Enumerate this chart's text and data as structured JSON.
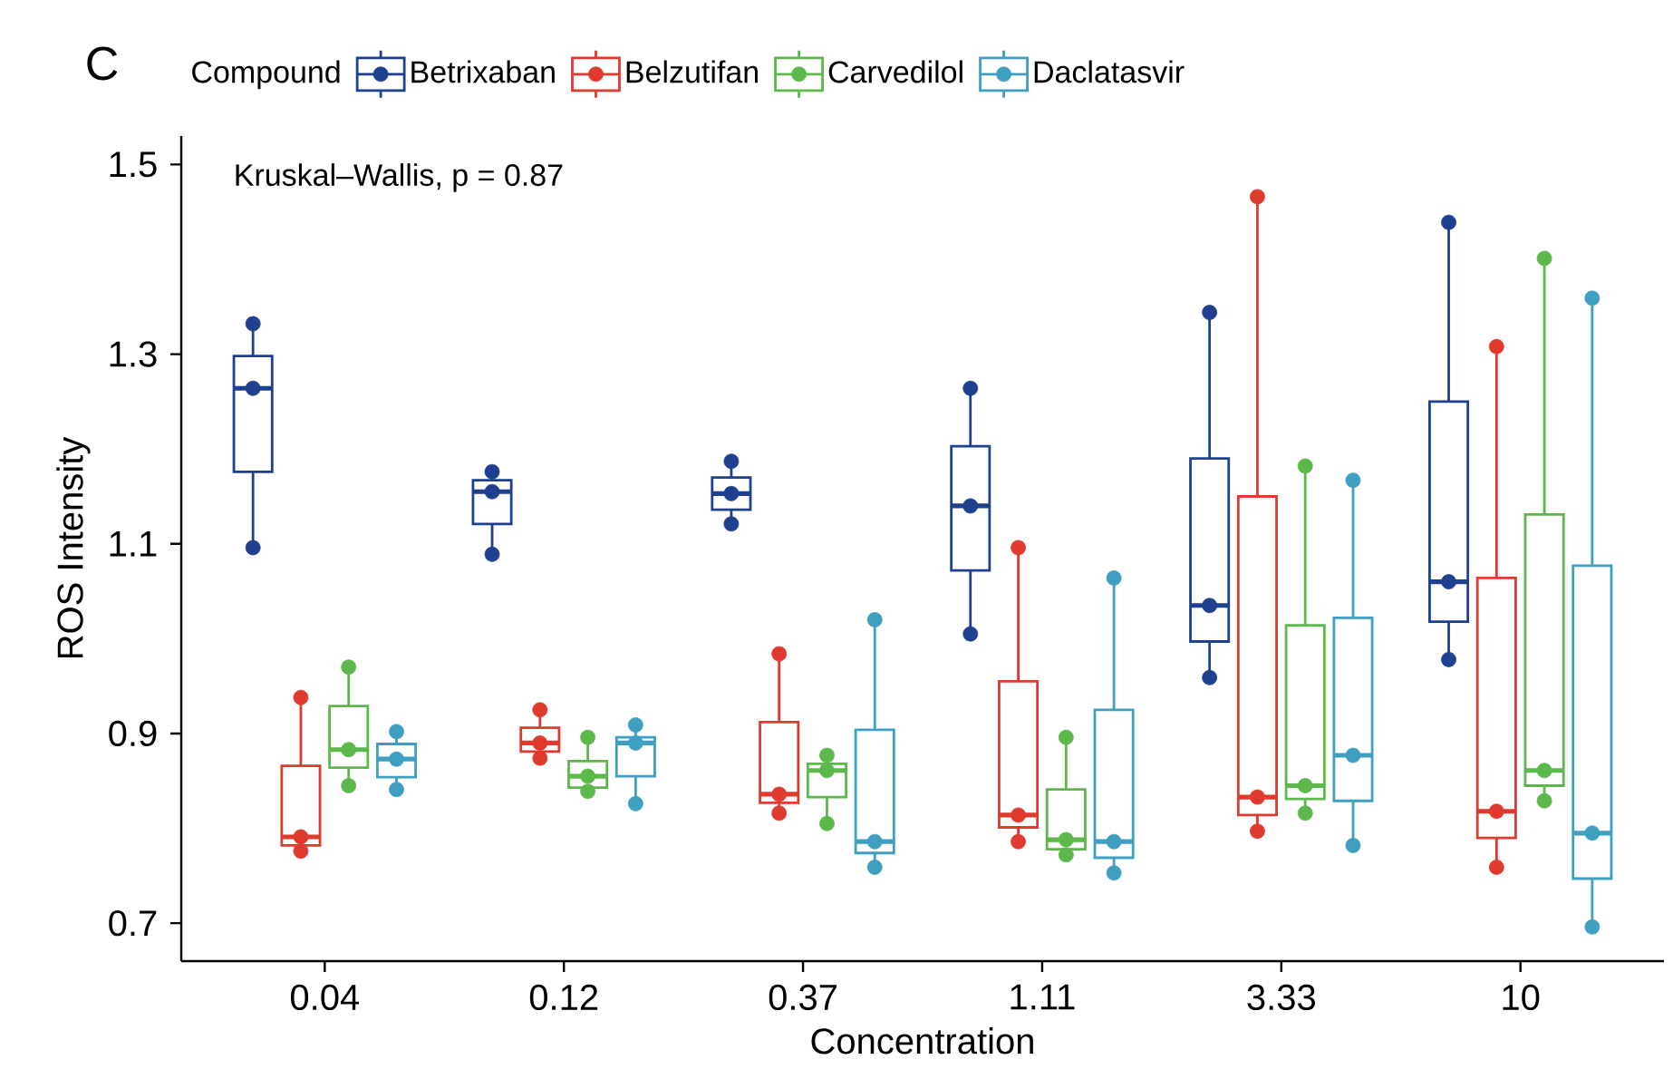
{
  "chart_data": {
    "type": "box",
    "xlabel": "Concentration",
    "ylabel": "ROS Intensity",
    "legend_title": "Compound",
    "legend": "top",
    "grid": false,
    "marker": "circle",
    "annotations": [
      "C",
      "Kruskal–Wallis, p = 0.87"
    ],
    "categories": [
      "0.04",
      "0.12",
      "0.37",
      "1.11",
      "3.33",
      "10"
    ],
    "ylim": [
      0.66,
      1.53
    ],
    "yticks": [
      0.7,
      0.9,
      1.1,
      1.3,
      1.5
    ],
    "series": [
      {
        "name": "Betrixaban",
        "color": "#1f3f8f",
        "boxes": [
          {
            "low": 1.096,
            "q1": 1.176,
            "median": 1.264,
            "q3": 1.298,
            "high": 1.332
          },
          {
            "low": 1.089,
            "q1": 1.121,
            "median": 1.155,
            "q3": 1.167,
            "high": 1.176
          },
          {
            "low": 1.121,
            "q1": 1.136,
            "median": 1.153,
            "q3": 1.17,
            "high": 1.187
          },
          {
            "low": 1.005,
            "q1": 1.072,
            "median": 1.14,
            "q3": 1.203,
            "high": 1.264
          },
          {
            "low": 0.959,
            "q1": 0.997,
            "median": 1.035,
            "q3": 1.19,
            "high": 1.344
          },
          {
            "low": 0.978,
            "q1": 1.018,
            "median": 1.06,
            "q3": 1.25,
            "high": 1.439
          }
        ]
      },
      {
        "name": "Belzutifan",
        "color": "#e03a2f",
        "boxes": [
          {
            "low": 0.776,
            "q1": 0.782,
            "median": 0.791,
            "q3": 0.866,
            "high": 0.938
          },
          {
            "low": 0.874,
            "q1": 0.881,
            "median": 0.89,
            "q3": 0.906,
            "high": 0.925
          },
          {
            "low": 0.816,
            "q1": 0.827,
            "median": 0.836,
            "q3": 0.912,
            "high": 0.984
          },
          {
            "low": 0.786,
            "q1": 0.801,
            "median": 0.814,
            "q3": 0.955,
            "high": 1.096
          },
          {
            "low": 0.797,
            "q1": 0.814,
            "median": 0.833,
            "q3": 1.15,
            "high": 1.466
          },
          {
            "low": 0.759,
            "q1": 0.79,
            "median": 0.818,
            "q3": 1.064,
            "high": 1.308
          }
        ]
      },
      {
        "name": "Carvedilol",
        "color": "#5cb84a",
        "boxes": [
          {
            "low": 0.845,
            "q1": 0.864,
            "median": 0.883,
            "q3": 0.929,
            "high": 0.97
          },
          {
            "low": 0.839,
            "q1": 0.843,
            "median": 0.855,
            "q3": 0.871,
            "high": 0.896
          },
          {
            "low": 0.805,
            "q1": 0.833,
            "median": 0.861,
            "q3": 0.868,
            "high": 0.877
          },
          {
            "low": 0.772,
            "q1": 0.778,
            "median": 0.788,
            "q3": 0.841,
            "high": 0.896
          },
          {
            "low": 0.816,
            "q1": 0.831,
            "median": 0.845,
            "q3": 1.014,
            "high": 1.182
          },
          {
            "low": 0.829,
            "q1": 0.845,
            "median": 0.861,
            "q3": 1.131,
            "high": 1.401
          }
        ]
      },
      {
        "name": "Daclatasvir",
        "color": "#3f9fc0",
        "boxes": [
          {
            "low": 0.841,
            "q1": 0.854,
            "median": 0.873,
            "q3": 0.889,
            "high": 0.902
          },
          {
            "low": 0.826,
            "q1": 0.855,
            "median": 0.89,
            "q3": 0.896,
            "high": 0.909
          },
          {
            "low": 0.759,
            "q1": 0.774,
            "median": 0.786,
            "q3": 0.904,
            "high": 1.02
          },
          {
            "low": 0.753,
            "q1": 0.769,
            "median": 0.786,
            "q3": 0.925,
            "high": 1.064
          },
          {
            "low": 0.782,
            "q1": 0.829,
            "median": 0.877,
            "q3": 1.022,
            "high": 1.167
          },
          {
            "low": 0.696,
            "q1": 0.747,
            "median": 0.795,
            "q3": 1.077,
            "high": 1.359
          }
        ]
      },
      {
        "type": "scatter",
        "color": "#1f3f8f",
        "x": [
          "0.04",
          "0.04",
          "0.04",
          "0.12",
          "0.12",
          "0.12",
          "0.37",
          "0.37",
          "0.37",
          "1.11",
          "1.11",
          "1.11",
          "3.33",
          "3.33",
          "3.33",
          "10",
          "10",
          "10"
        ],
        "values": [
          1.096,
          1.264,
          1.332,
          1.089,
          1.155,
          1.176,
          1.121,
          1.153,
          1.187,
          1.005,
          1.14,
          1.264,
          0.959,
          1.035,
          1.344,
          0.978,
          1.06,
          1.439
        ]
      },
      {
        "type": "scatter",
        "color": "#e03a2f",
        "x": [
          "0.04",
          "0.04",
          "0.04",
          "0.12",
          "0.12",
          "0.12",
          "0.37",
          "0.37",
          "0.37",
          "1.11",
          "1.11",
          "1.11",
          "3.33",
          "3.33",
          "3.33",
          "10",
          "10",
          "10"
        ],
        "values": [
          0.776,
          0.791,
          0.938,
          0.874,
          0.89,
          0.925,
          0.816,
          0.836,
          0.984,
          0.786,
          0.814,
          1.096,
          0.797,
          0.833,
          1.466,
          0.759,
          0.818,
          1.308
        ]
      },
      {
        "type": "scatter",
        "color": "#5cb84a",
        "x": [
          "0.04",
          "0.04",
          "0.04",
          "0.12",
          "0.12",
          "0.12",
          "0.37",
          "0.37",
          "0.37",
          "1.11",
          "1.11",
          "1.11",
          "3.33",
          "3.33",
          "3.33",
          "10",
          "10",
          "10"
        ],
        "values": [
          0.845,
          0.883,
          0.97,
          0.839,
          0.855,
          0.896,
          0.805,
          0.861,
          0.877,
          0.772,
          0.788,
          0.896,
          0.816,
          0.845,
          1.182,
          0.829,
          0.861,
          1.401
        ]
      },
      {
        "type": "scatter",
        "color": "#3f9fc0",
        "x": [
          "0.04",
          "0.04",
          "0.04",
          "0.12",
          "0.12",
          "0.12",
          "0.37",
          "0.37",
          "0.37",
          "1.11",
          "1.11",
          "1.11",
          "3.33",
          "3.33",
          "3.33",
          "10",
          "10",
          "10"
        ],
        "values": [
          0.841,
          0.873,
          0.902,
          0.826,
          0.89,
          0.909,
          0.759,
          0.786,
          1.02,
          0.753,
          0.786,
          1.064,
          0.782,
          0.877,
          1.167,
          0.696,
          0.795,
          1.359
        ]
      }
    ]
  }
}
